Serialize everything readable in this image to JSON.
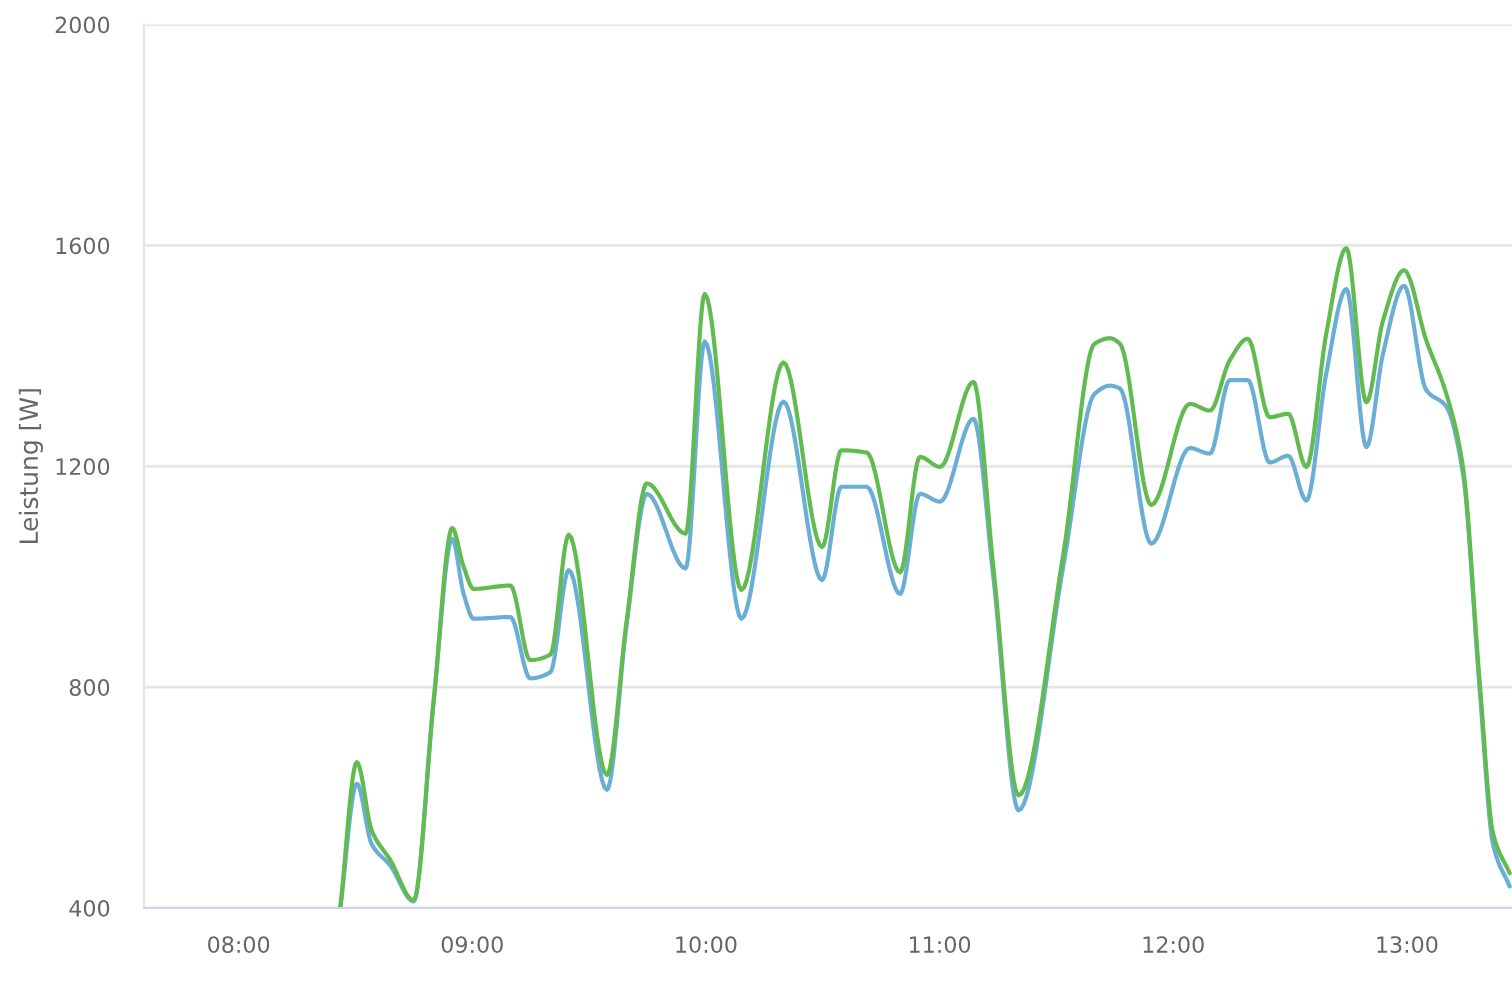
{
  "chart_data": {
    "type": "line",
    "ylabel": "Leistung [W]",
    "x": [
      8.435,
      8.506,
      8.57,
      8.649,
      8.749,
      8.835,
      8.914,
      8.963,
      9.006,
      9.163,
      9.248,
      9.334,
      9.413,
      9.576,
      9.661,
      9.747,
      9.913,
      9.995,
      10.152,
      10.332,
      10.497,
      10.58,
      10.688,
      10.831,
      10.916,
      11.002,
      11.145,
      11.23,
      11.338,
      11.53,
      11.663,
      11.729,
      11.772,
      11.906,
      12.071,
      12.157,
      12.242,
      12.319,
      12.413,
      12.492,
      12.57,
      12.655,
      12.741,
      12.827,
      12.898,
      12.988,
      13.083,
      13.169,
      13.24,
      13.311,
      13.369,
      13.44
    ],
    "series": [
      {
        "color": "#6aaed6",
        "values": [
          400,
          625,
          515,
          477,
          412,
          776,
          1069,
          969,
          924,
          927,
          816,
          827,
          1012,
          614,
          915,
          1150,
          1015,
          1426,
          924,
          1317,
          994,
          1163,
          1163,
          969,
          1150,
          1136,
          1286,
          1000,
          577,
          1020,
          1331,
          1346,
          1341,
          1060,
          1233,
          1223,
          1356,
          1356,
          1207,
          1219,
          1138,
          1368,
          1521,
          1235,
          1404,
          1527,
          1338,
          1308,
          1187,
          800,
          515,
          439
        ]
      },
      {
        "color": "#62bb50",
        "values": [
          400,
          664,
          540,
          487,
          414,
          776,
          1088,
          1018,
          978,
          984,
          849,
          859,
          1076,
          641,
          921,
          1169,
          1078,
          1512,
          976,
          1388,
          1054,
          1229,
          1225,
          1008,
          1217,
          1199,
          1353,
          1018,
          604,
          1042,
          1422,
          1432,
          1422,
          1130,
          1313,
          1301,
          1392,
          1431,
          1289,
          1295,
          1199,
          1440,
          1595,
          1316,
          1464,
          1555,
          1428,
          1331,
          1199,
          813,
          535,
          463
        ]
      }
    ],
    "xlim": [
      7.595,
      13.45
    ],
    "xticks": [
      {
        "value": 8,
        "label": "08:00"
      },
      {
        "value": 9,
        "label": "09:00"
      },
      {
        "value": 10,
        "label": "10:00"
      },
      {
        "value": 11,
        "label": "11:00"
      },
      {
        "value": 12,
        "label": "12:00"
      },
      {
        "value": 13,
        "label": "13:00"
      }
    ],
    "ylim": [
      400,
      2000
    ],
    "yticks": [
      400,
      800,
      1200,
      1600,
      2000
    ],
    "grid": "y"
  }
}
